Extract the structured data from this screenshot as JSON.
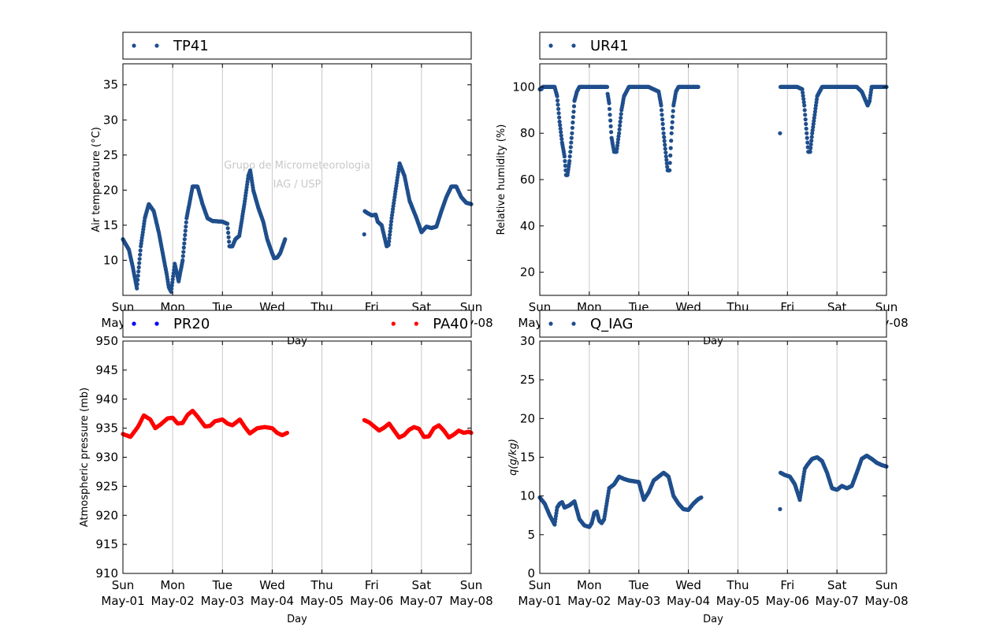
{
  "watermark": [
    "Grupo de Micrometeorologia",
    "IAG / USP"
  ],
  "x_axis": {
    "label": "Day",
    "range": [
      "2016-05-01",
      "2016-05-08"
    ],
    "ticks": [
      {
        "day": "Sun",
        "date": "May-01"
      },
      {
        "day": "Mon",
        "date": "May-02"
      },
      {
        "day": "Tue",
        "date": "May-03"
      },
      {
        "day": "Wed",
        "date": "May-04"
      },
      {
        "day": "Thu",
        "date": "May-05"
      },
      {
        "day": "Fri",
        "date": "May-06"
      },
      {
        "day": "Sat",
        "date": "May-07"
      },
      {
        "day": "Sun",
        "date": "May-08"
      }
    ],
    "vertical_grid": true
  },
  "chart_data": [
    {
      "type": "scatter",
      "ylabel": "Air temperature (°C)",
      "ylim": [
        5,
        38
      ],
      "yticks": [
        10,
        15,
        20,
        25,
        30,
        35
      ],
      "series": [
        {
          "name": "TP41",
          "color": "#1f4e8c",
          "segments": [
            {
              "x": [
                0,
                0.12,
                0.2,
                0.28,
                0.36,
                0.44,
                0.52,
                0.62,
                0.72,
                0.8,
                0.88,
                0.92,
                0.97,
                1.04,
                1.12,
                1.2,
                1.28,
                1.4,
                1.5,
                1.6,
                1.7,
                1.8,
                2.0,
                2.1,
                2.14,
                2.2,
                2.26,
                2.34,
                2.44,
                2.52,
                2.56,
                2.62,
                2.72,
                2.82,
                2.9,
                3.0,
                3.04,
                3.1,
                3.16,
                3.26
              ],
              "y": [
                13,
                11.5,
                9,
                6,
                12,
                16,
                18,
                17,
                14,
                11,
                8,
                6.2,
                5.5,
                9.5,
                7,
                10,
                16,
                20.5,
                20.5,
                18,
                16,
                15.6,
                15.5,
                15.2,
                12,
                12,
                13,
                13.5,
                18,
                22,
                22.8,
                20,
                17.5,
                15.5,
                13,
                11,
                10.3,
                10.4,
                11,
                13
              ]
            },
            {
              "x": [
                4.85
              ],
              "y": [
                13.7
              ]
            },
            {
              "x": [
                4.86,
                4.9,
                5.0,
                5.08,
                5.12,
                5.2,
                5.3,
                5.34,
                5.4,
                5.46,
                5.56,
                5.66,
                5.76,
                5.9,
                6.0,
                6.1,
                6.2,
                6.3,
                6.4,
                6.5,
                6.6,
                6.7,
                6.8,
                6.9,
                7.0
              ],
              "y": [
                17,
                16.8,
                16.4,
                16.5,
                15.5,
                15,
                12,
                12.2,
                16,
                19,
                23.8,
                22,
                18.5,
                16,
                14,
                14.8,
                14.6,
                14.8,
                17,
                19,
                20.5,
                20.5,
                19,
                18.2,
                18
              ]
            }
          ]
        }
      ]
    },
    {
      "type": "scatter",
      "ylabel": "Relative humidity (%)",
      "ylim": [
        10,
        110
      ],
      "yticks": [
        20,
        40,
        60,
        80,
        100
      ],
      "series": [
        {
          "name": "UR41",
          "color": "#1f4e8c",
          "segments": [
            {
              "x": [
                0,
                0.03,
                0.06,
                0.3,
                0.35,
                0.4,
                0.45,
                0.5,
                0.53,
                0.56,
                0.6,
                0.65,
                0.7,
                0.75,
                0.8,
                0.9,
                1.0,
                1.3,
                1.36
              ],
              "y": [
                99,
                99,
                100,
                100,
                96,
                85,
                76,
                70,
                62,
                62,
                68,
                80,
                94,
                98,
                100,
                100,
                100,
                100,
                100
              ]
            },
            {
              "x": [
                1.37,
                1.4,
                1.45,
                1.5,
                1.55,
                1.6,
                1.65,
                1.7,
                1.75,
                1.8,
                1.9,
                2.0,
                2.2,
                2.4,
                2.45,
                2.5,
                2.55,
                2.58,
                2.62,
                2.66,
                2.7,
                2.75,
                2.8,
                3.0,
                3.2
              ],
              "y": [
                97,
                93,
                78,
                72,
                72,
                80,
                90,
                96,
                98,
                100,
                100,
                100,
                100,
                98,
                92,
                80,
                70,
                64,
                64,
                80,
                92,
                98,
                100,
                100,
                100
              ]
            },
            {
              "x": [
                4.85
              ],
              "y": [
                80
              ]
            },
            {
              "x": [
                4.86,
                5.0,
                5.2,
                5.3,
                5.34,
                5.38,
                5.42,
                5.46,
                5.5,
                5.55,
                5.6,
                5.7,
                5.8,
                6.0,
                6.4,
                6.5,
                6.54,
                6.58,
                6.62,
                6.66,
                6.7,
                6.8,
                7.0
              ],
              "y": [
                100,
                100,
                100,
                99,
                92,
                82,
                72,
                72,
                80,
                88,
                96,
                100,
                100,
                100,
                100,
                98,
                96,
                94,
                92,
                94,
                100,
                100,
                100
              ]
            }
          ]
        }
      ]
    },
    {
      "type": "scatter",
      "ylabel": "Atmospheric pressure (mb)",
      "ylim": [
        910,
        950
      ],
      "yticks": [
        910,
        915,
        920,
        925,
        930,
        935,
        940,
        945,
        950
      ],
      "series": [
        {
          "name": "PR20",
          "color": "#0000ff",
          "segments": []
        },
        {
          "name": "PA40",
          "color": "#ff0000",
          "segments": [
            {
              "x": [
                0,
                0.15,
                0.3,
                0.42,
                0.55,
                0.65,
                0.75,
                0.9,
                1.0,
                1.1,
                1.2,
                1.3,
                1.4,
                1.5,
                1.65,
                1.75,
                1.85,
                2.0,
                2.1,
                2.2,
                2.35,
                2.45,
                2.55,
                2.7,
                2.85,
                3.0,
                3.1,
                3.2,
                3.3
              ],
              "y": [
                934,
                933.5,
                935.2,
                937.2,
                936.5,
                935,
                935.6,
                936.7,
                936.8,
                935.8,
                935.9,
                937.3,
                938,
                937,
                935.3,
                935.4,
                936.2,
                936.5,
                935.8,
                935.5,
                936.5,
                935.2,
                934.1,
                935,
                935.2,
                935,
                934.2,
                933.8,
                934.2
              ]
            },
            {
              "x": [
                4.85,
                4.95,
                5.05,
                5.15,
                5.25,
                5.35,
                5.45,
                5.55,
                5.65,
                5.75,
                5.85,
                5.95,
                6.05,
                6.15,
                6.25,
                6.35,
                6.45,
                6.55,
                6.65,
                6.75,
                6.85,
                6.95,
                7.0
              ],
              "y": [
                936.4,
                936,
                935.3,
                934.6,
                935.1,
                935.8,
                934.6,
                933.4,
                933.8,
                934.7,
                935.2,
                934.9,
                933.5,
                933.6,
                935,
                935.5,
                934.6,
                933.4,
                933.9,
                934.6,
                934.2,
                934.4,
                934.2
              ]
            }
          ]
        }
      ]
    },
    {
      "type": "scatter",
      "ylabel": "q(g/kg)",
      "ylim": [
        0,
        30
      ],
      "yticks": [
        0,
        5,
        10,
        15,
        20,
        25,
        30
      ],
      "series": [
        {
          "name": "Q_IAG",
          "color": "#1f4e8c",
          "segments": [
            {
              "x": [
                0,
                0.1,
                0.2,
                0.3,
                0.35,
                0.4,
                0.45,
                0.5,
                0.6,
                0.7,
                0.8,
                0.9,
                1.0,
                1.05,
                1.1,
                1.15,
                1.2,
                1.25,
                1.3,
                1.4,
                1.5,
                1.6,
                1.7,
                1.8,
                2.0,
                2.1,
                2.2,
                2.3,
                2.4,
                2.5,
                2.6,
                2.7,
                2.8,
                2.9,
                3.0,
                3.1,
                3.2,
                3.26
              ],
              "y": [
                9.8,
                9,
                7.5,
                6.3,
                8.5,
                9,
                9.2,
                8.5,
                8.8,
                9.3,
                7,
                6.2,
                6,
                6.5,
                7.8,
                8,
                6.8,
                6.5,
                7,
                11,
                11.5,
                12.5,
                12.2,
                12,
                11.8,
                9.5,
                10.5,
                12,
                12.5,
                13,
                12.5,
                10,
                9,
                8.3,
                8.2,
                9,
                9.6,
                9.8
              ]
            },
            {
              "x": [
                4.85
              ],
              "y": [
                8.3
              ]
            },
            {
              "x": [
                4.86,
                4.95,
                5.05,
                5.15,
                5.25,
                5.3,
                5.35,
                5.4,
                5.5,
                5.6,
                5.7,
                5.8,
                5.9,
                6.0,
                6.1,
                6.2,
                6.3,
                6.4,
                6.5,
                6.6,
                6.7,
                6.8,
                6.9,
                7.0
              ],
              "y": [
                13,
                12.7,
                12.5,
                11.5,
                9.5,
                11.5,
                13.5,
                14,
                14.8,
                15,
                14.5,
                13,
                11,
                10.8,
                11.3,
                11,
                11.3,
                13,
                14.8,
                15.2,
                14.8,
                14.3,
                14,
                13.8
              ]
            }
          ]
        }
      ]
    }
  ]
}
